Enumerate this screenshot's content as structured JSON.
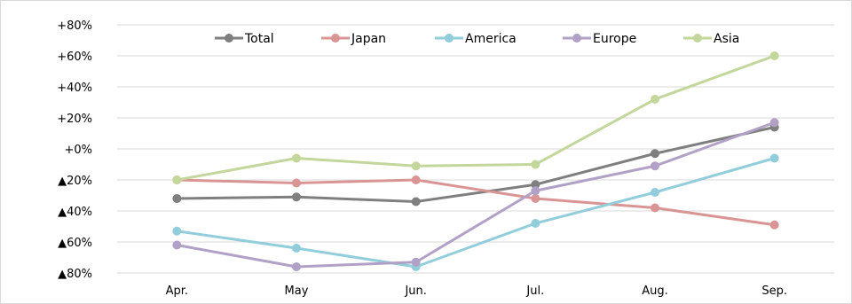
{
  "chart_data": {
    "type": "line",
    "categories": [
      "Apr.",
      "May",
      "Jun.",
      "Jul.",
      "Aug.",
      "Sep."
    ],
    "ylim": [
      -80,
      80
    ],
    "yticks": [
      {
        "value": 80,
        "label": "+80%"
      },
      {
        "value": 60,
        "label": "+60%"
      },
      {
        "value": 40,
        "label": "+40%"
      },
      {
        "value": 20,
        "label": "+20%"
      },
      {
        "value": 0,
        "label": "+0%"
      },
      {
        "value": -20,
        "label": "▲20%"
      },
      {
        "value": -40,
        "label": "▲40%"
      },
      {
        "value": -60,
        "label": "▲60%"
      },
      {
        "value": -80,
        "label": "▲80%"
      }
    ],
    "grid": "horizontal",
    "legend_position": "top",
    "series": [
      {
        "name": "Total",
        "color": "#7f7f7f",
        "values": [
          -32,
          -31,
          -34,
          -23,
          -3,
          14
        ]
      },
      {
        "name": "Japan",
        "color": "#d99594",
        "values": [
          -20,
          -22,
          -20,
          -32,
          -38,
          -49
        ]
      },
      {
        "name": "America",
        "color": "#92cddc",
        "values": [
          -53,
          -64,
          -76,
          -48,
          -28,
          -6
        ]
      },
      {
        "name": "Europe",
        "color": "#b2a1c7",
        "values": [
          -62,
          -76,
          -73,
          -27,
          -11,
          17
        ]
      },
      {
        "name": "Asia",
        "color": "#c3d69b",
        "values": [
          -20,
          -6,
          -11,
          -10,
          32,
          60
        ]
      }
    ]
  }
}
